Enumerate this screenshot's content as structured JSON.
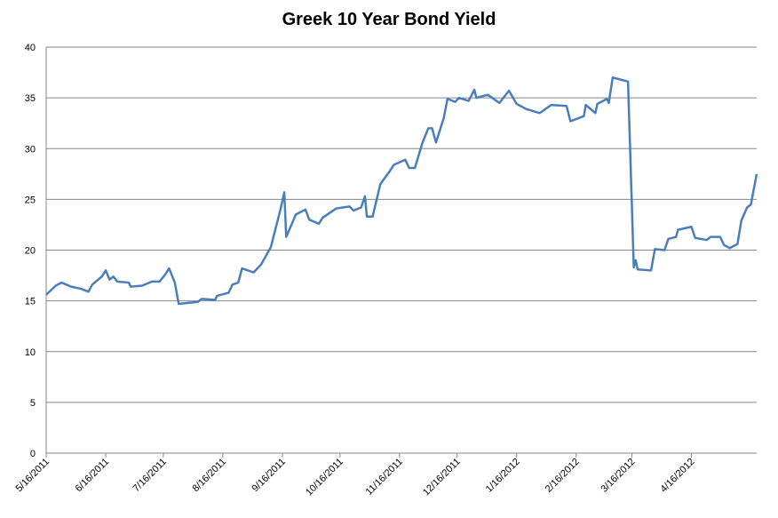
{
  "chart_data": {
    "type": "line",
    "title": "Greek 10 Year Bond Yield",
    "x": [
      "5/16/2011",
      "5/21/2011",
      "5/24/2011",
      "5/29/2011",
      "6/3/2011",
      "6/7/2011",
      "6/9/2011",
      "6/14/2011",
      "6/16/2011",
      "6/18/2011",
      "6/20/2011",
      "6/22/2011",
      "6/28/2011",
      "6/29/2011",
      "7/5/2011",
      "7/10/2011",
      "7/14/2011",
      "7/17/2011",
      "7/19/2011",
      "7/22/2011",
      "7/24/2011",
      "7/29/2011",
      "8/3/2011",
      "8/5/2011",
      "8/12/2011",
      "8/13/2011",
      "8/19/2011",
      "8/21/2011",
      "8/24/2011",
      "8/26/2011",
      "9/1/2011",
      "9/5/2011",
      "9/10/2011",
      "9/15/2011",
      "9/17/2011",
      "9/18/2011",
      "9/23/2011",
      "9/28/2011",
      "9/30/2011",
      "10/5/2011",
      "10/7/2011",
      "10/14/2011",
      "10/21/2011",
      "10/23/2011",
      "10/27/2011",
      "10/29/2011",
      "10/30/2011",
      "11/2/2011",
      "11/6/2011",
      "11/11/2011",
      "11/13/2011",
      "11/19/2011",
      "11/21/2011",
      "11/24/2011",
      "11/28/2011",
      "12/1/2011",
      "12/3/2011",
      "12/5/2011",
      "12/9/2011",
      "12/11/2011",
      "12/15/2011",
      "12/17/2011",
      "12/22/2011",
      "12/25/2011",
      "12/26/2011",
      "1/1/2012",
      "1/7/2012",
      "1/12/2012",
      "1/16/2012",
      "1/21/2012",
      "1/28/2012",
      "2/3/2012",
      "2/11/2012",
      "2/13/2012",
      "2/20/2012",
      "2/21/2012",
      "2/26/2012",
      "2/27/2012",
      "3/3/2012",
      "3/4/2012",
      "3/6/2012",
      "3/14/2012",
      "3/17/2012",
      "3/18/2012",
      "3/19/2012",
      "3/26/2012",
      "3/28/2012",
      "4/2/2012",
      "4/4/2012",
      "4/8/2012",
      "4/9/2012",
      "4/16/2012",
      "4/18/2012",
      "4/24/2012",
      "4/26/2012",
      "5/1/2012",
      "5/3/2012",
      "5/6/2012",
      "5/10/2012",
      "5/12/2012",
      "5/15/2012",
      "5/17/2012",
      "5/20/2012"
    ],
    "series": [
      {
        "name": "Greek 10 Year Bond Yield",
        "color": "#4a7ebb",
        "values": [
          15.6,
          16.5,
          16.8,
          16.4,
          16.2,
          15.9,
          16.6,
          17.4,
          18.0,
          17.1,
          17.4,
          16.9,
          16.8,
          16.4,
          16.5,
          16.9,
          16.9,
          17.6,
          18.2,
          16.8,
          14.7,
          14.8,
          14.9,
          15.2,
          15.1,
          15.5,
          15.8,
          16.6,
          16.8,
          18.2,
          17.8,
          18.6,
          20.3,
          24.0,
          25.7,
          21.3,
          23.5,
          24.0,
          23.0,
          22.6,
          23.2,
          24.1,
          24.3,
          23.9,
          24.2,
          25.3,
          23.3,
          23.3,
          26.5,
          27.8,
          28.4,
          28.9,
          28.1,
          28.1,
          30.6,
          32.0,
          32.0,
          30.6,
          33.0,
          34.9,
          34.6,
          35.0,
          34.7,
          35.8,
          35.0,
          35.3,
          34.5,
          35.7,
          34.4,
          33.9,
          33.5,
          34.3,
          34.2,
          32.7,
          33.2,
          34.3,
          33.5,
          34.4,
          34.9,
          34.5,
          37.0,
          36.6,
          18.3,
          19.0,
          18.1,
          18.0,
          20.1,
          20.0,
          21.1,
          21.3,
          22.0,
          22.3,
          21.2,
          21.0,
          21.3,
          21.3,
          20.5,
          20.2,
          20.6,
          22.9,
          24.2,
          24.5,
          27.5
        ]
      }
    ],
    "xlim": [
      "5/16/2011",
      "5/20/2012"
    ],
    "xticks": [
      "5/16/2011",
      "6/16/2011",
      "7/16/2011",
      "8/16/2011",
      "9/16/2011",
      "10/16/2011",
      "11/16/2011",
      "12/16/2011",
      "1/16/2012",
      "2/16/2012",
      "3/16/2012",
      "4/16/2012"
    ],
    "ylim": [
      0,
      40
    ],
    "yticks": [
      0,
      5,
      10,
      15,
      20,
      25,
      30,
      35,
      40
    ],
    "grid": true
  }
}
